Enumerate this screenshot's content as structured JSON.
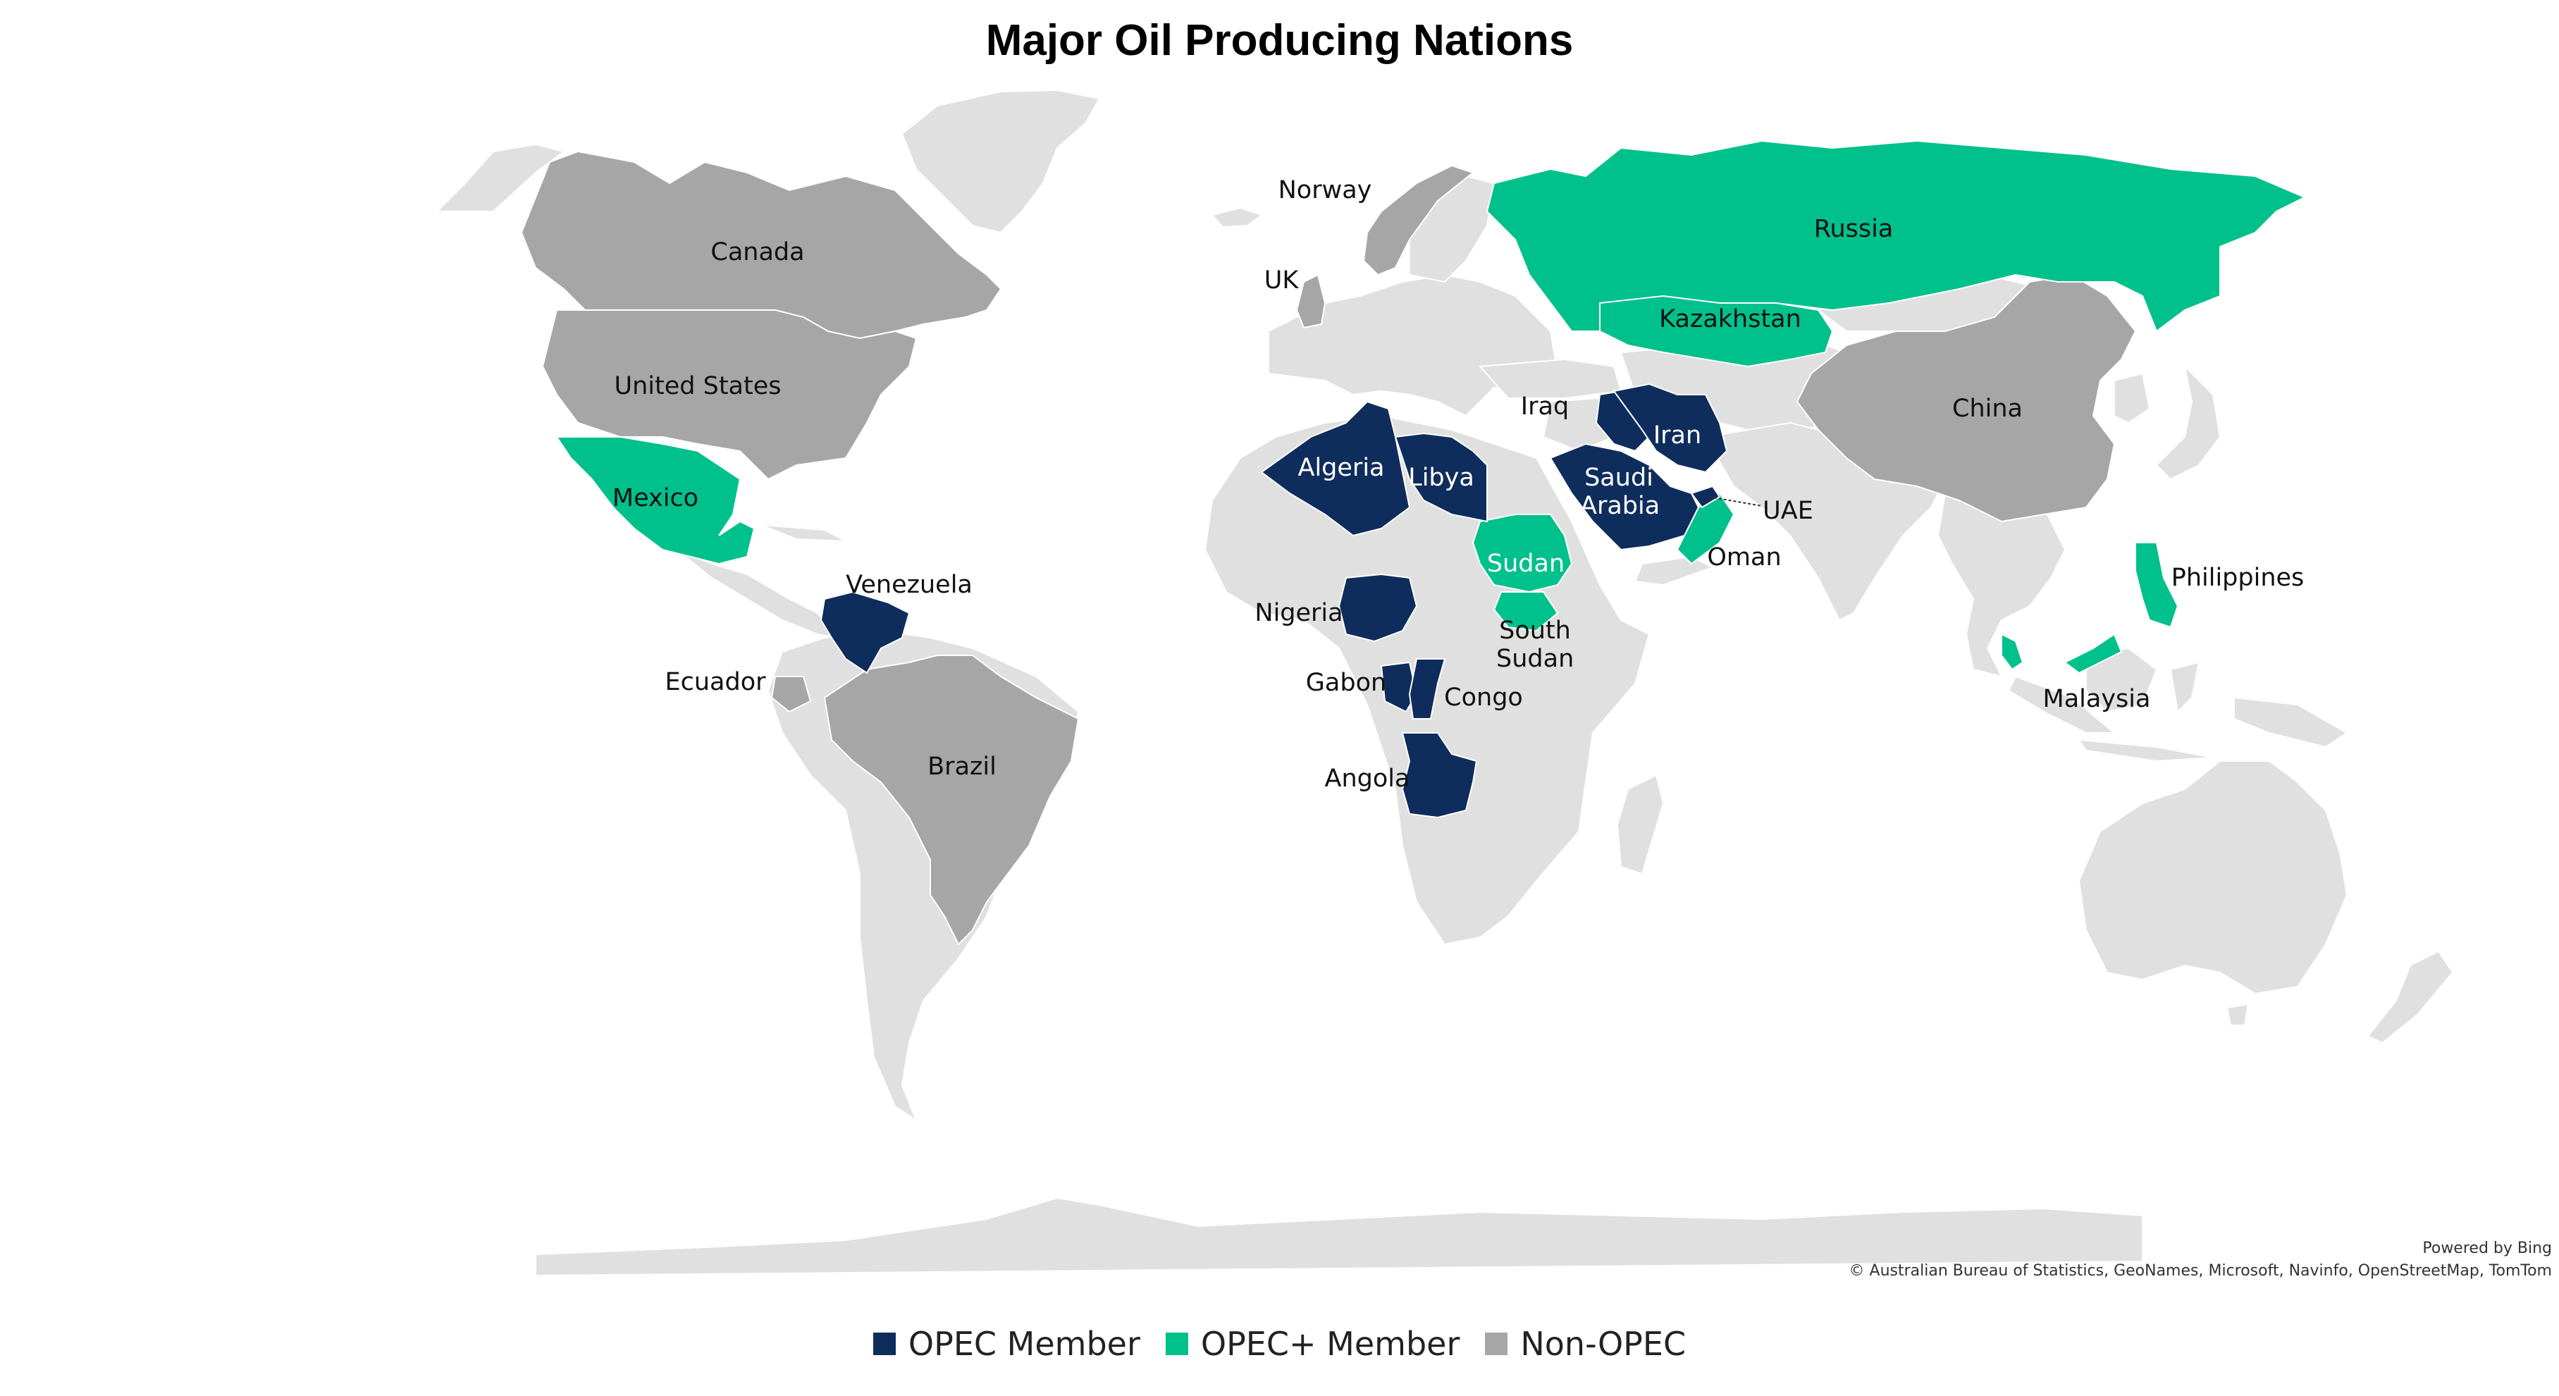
{
  "title": "Major Oil Producing Nations",
  "colors": {
    "opec": "#0f2d5c",
    "opec_plus": "#00c08b",
    "non_opec": "#a6a6a6",
    "other_land": "#e0e0e0",
    "ocean": "#ffffff"
  },
  "legend": [
    {
      "label": "OPEC Member",
      "category": "opec"
    },
    {
      "label": "OPEC+ Member",
      "category": "opec_plus"
    },
    {
      "label": "Non-OPEC",
      "category": "non_opec"
    }
  ],
  "countries": [
    {
      "name": "Canada",
      "category": "non_opec"
    },
    {
      "name": "United States",
      "category": "non_opec"
    },
    {
      "name": "Mexico",
      "category": "opec_plus"
    },
    {
      "name": "Venezuela",
      "category": "opec"
    },
    {
      "name": "Ecuador",
      "category": "non_opec"
    },
    {
      "name": "Brazil",
      "category": "non_opec"
    },
    {
      "name": "Norway",
      "category": "non_opec"
    },
    {
      "name": "UK",
      "category": "non_opec"
    },
    {
      "name": "Algeria",
      "category": "opec"
    },
    {
      "name": "Libya",
      "category": "opec"
    },
    {
      "name": "Nigeria",
      "category": "opec"
    },
    {
      "name": "Gabon",
      "category": "opec"
    },
    {
      "name": "Congo",
      "category": "opec"
    },
    {
      "name": "Angola",
      "category": "opec"
    },
    {
      "name": "Sudan",
      "category": "opec_plus"
    },
    {
      "name": "South Sudan",
      "category": "opec_plus"
    },
    {
      "name": "Iraq",
      "category": "opec"
    },
    {
      "name": "Iran",
      "category": "opec"
    },
    {
      "name": "Saudi Arabia",
      "category": "opec"
    },
    {
      "name": "UAE",
      "category": "opec"
    },
    {
      "name": "Oman",
      "category": "opec_plus"
    },
    {
      "name": "Russia",
      "category": "opec_plus"
    },
    {
      "name": "Kazakhstan",
      "category": "opec_plus"
    },
    {
      "name": "China",
      "category": "non_opec"
    },
    {
      "name": "Philippines",
      "category": "opec_plus"
    },
    {
      "name": "Malaysia",
      "category": "opec_plus"
    }
  ],
  "attribution": {
    "powered_by": "Powered by Bing",
    "copyright": "© Australian Bureau of Statistics, GeoNames, Microsoft, Navinfo, OpenStreetMap, TomTom"
  }
}
